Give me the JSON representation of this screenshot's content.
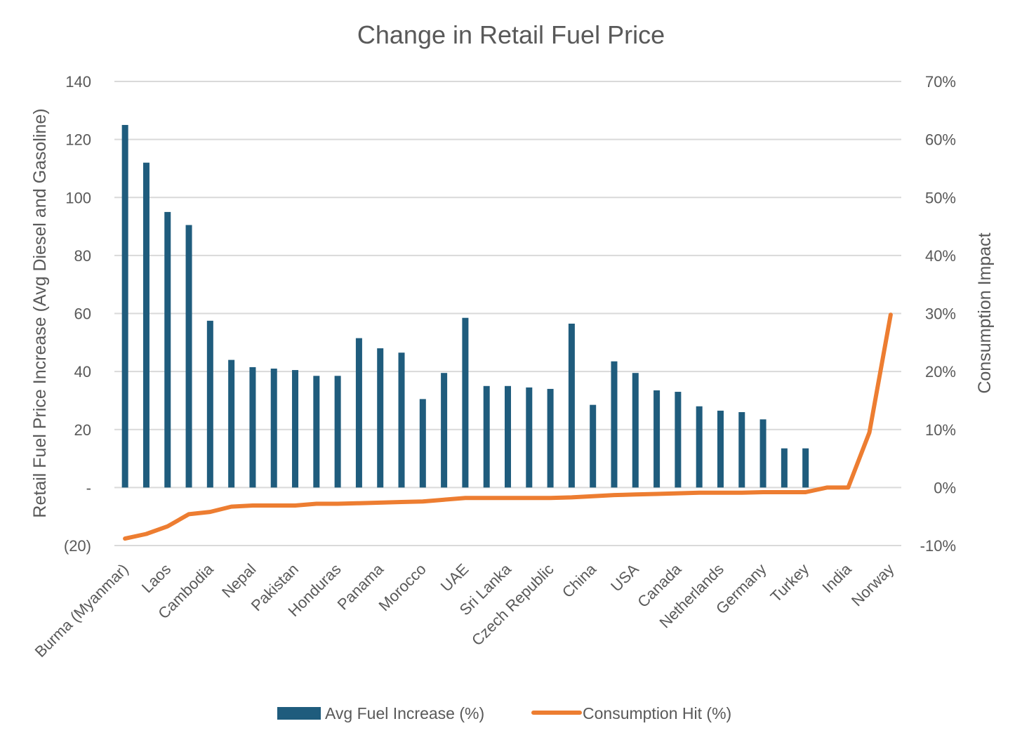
{
  "chart_data": {
    "type": "bar+line",
    "title": "Change in Retail Fuel Price",
    "ylabel": "Retail Fuel Price Increase (Avg Diesel and Gasoline)",
    "y2label": "Consumption Impact",
    "ylim": [
      -20,
      140
    ],
    "y2lim": [
      -0.1,
      0.7
    ],
    "y_ticks": [
      {
        "value": 140,
        "label": "140"
      },
      {
        "value": 120,
        "label": "120"
      },
      {
        "value": 100,
        "label": "100"
      },
      {
        "value": 80,
        "label": "80"
      },
      {
        "value": 60,
        "label": "60"
      },
      {
        "value": 40,
        "label": "40"
      },
      {
        "value": 20,
        "label": "20"
      },
      {
        "value": 0,
        "label": "-"
      },
      {
        "value": -20,
        "label": "(20)"
      }
    ],
    "y2_ticks": [
      {
        "value": 0.7,
        "label": "70%"
      },
      {
        "value": 0.6,
        "label": "60%"
      },
      {
        "value": 0.5,
        "label": "50%"
      },
      {
        "value": 0.4,
        "label": "40%"
      },
      {
        "value": 0.3,
        "label": "30%"
      },
      {
        "value": 0.2,
        "label": "20%"
      },
      {
        "value": 0.1,
        "label": "10%"
      },
      {
        "value": 0.0,
        "label": "0%"
      },
      {
        "value": -0.1,
        "label": "-10%"
      }
    ],
    "categories": [
      "Burma (Myanmar)",
      "",
      "Laos",
      "",
      "Cambodia",
      "",
      "Nepal",
      "",
      "Pakistan",
      "",
      "Honduras",
      "",
      "Panama",
      "",
      "Morocco",
      "",
      "UAE",
      "",
      "Sri Lanka",
      "",
      "Czech Republic",
      "",
      "China",
      "",
      "USA",
      "",
      "Canada",
      "",
      "Netherlands",
      "",
      "Germany",
      "",
      "Turkey",
      "",
      "India",
      "",
      "Norway"
    ],
    "series": [
      {
        "name": "Avg Fuel Increase (%)",
        "type": "bar",
        "axis": "left",
        "color": "#1f5c7d",
        "values": [
          125,
          112,
          95,
          90.5,
          57.5,
          44,
          41.5,
          41,
          40.5,
          38.5,
          38.5,
          51.5,
          48,
          46.5,
          30.5,
          39.5,
          58.5,
          35,
          35,
          34.5,
          34,
          56.5,
          28.5,
          43.5,
          39.5,
          33.5,
          33,
          28,
          26.5,
          26,
          23.5,
          13.5,
          13.5,
          0,
          0,
          0,
          0
        ]
      },
      {
        "name": "Consumption Hit (%)",
        "type": "line",
        "axis": "right",
        "color": "#ed7d31",
        "values": [
          -0.088,
          -0.08,
          -0.067,
          -0.046,
          -0.042,
          -0.033,
          -0.031,
          -0.031,
          -0.031,
          -0.028,
          -0.028,
          -0.027,
          -0.026,
          -0.025,
          -0.024,
          -0.021,
          -0.018,
          -0.018,
          -0.018,
          -0.018,
          -0.018,
          -0.017,
          -0.015,
          -0.013,
          -0.012,
          -0.011,
          -0.01,
          -0.009,
          -0.009,
          -0.009,
          -0.008,
          -0.008,
          -0.008,
          0,
          0,
          0.095,
          0.298
        ]
      }
    ],
    "legend": "bottom"
  }
}
